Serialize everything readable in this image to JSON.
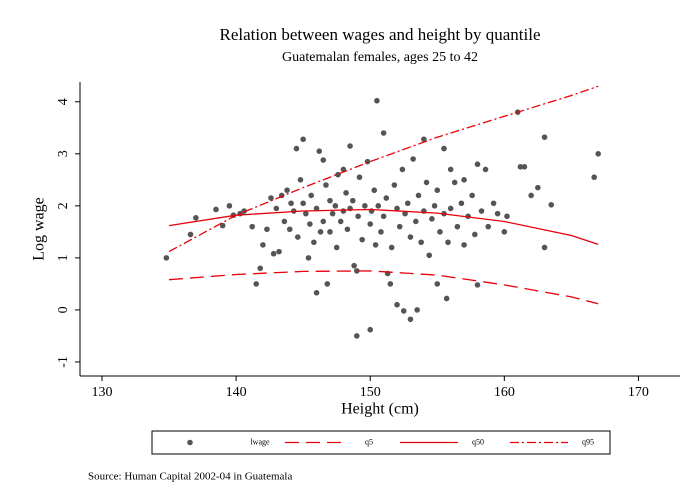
{
  "chart_data": {
    "type": "scatter",
    "title": "Relation between wages and height by quantile",
    "subtitle": "Guatemalan females, ages 25 to 42",
    "x_label": "Height (cm)",
    "y_label": "Log wage",
    "note": "Source: Human Capital 2002-04 in Guatemala",
    "xlim": [
      128.36,
      173.1
    ],
    "ylim": [
      -1.27,
      4.38
    ],
    "xticks": [
      130,
      140,
      150,
      160,
      170
    ],
    "yticks": [
      -1,
      0,
      1,
      2,
      3,
      4
    ],
    "grid": false,
    "legend": "bottom",
    "series": [
      {
        "name": "lwage",
        "type": "scatter",
        "color": "#555555",
        "x": [
          134.8,
          136.6,
          137,
          138.5,
          139,
          139.5,
          139.8,
          140.3,
          140.6,
          141.2,
          141.5,
          141.8,
          142,
          142.3,
          142.6,
          142.8,
          143,
          143.2,
          143.4,
          143.6,
          143.8,
          144,
          144.1,
          144.3,
          144.5,
          144.6,
          144.8,
          145,
          145,
          145.2,
          145.4,
          145.5,
          145.6,
          145.8,
          146,
          146,
          146.2,
          146.3,
          146.5,
          146.5,
          146.7,
          146.8,
          147,
          147,
          147.2,
          147.4,
          147.5,
          147.6,
          147.8,
          148,
          148,
          148.2,
          148.3,
          148.5,
          148.5,
          148.7,
          148.8,
          149,
          149,
          149.1,
          149.2,
          149.4,
          149.6,
          149.8,
          150,
          150,
          150.1,
          150.3,
          150.4,
          150.5,
          150.6,
          150.8,
          151,
          151,
          151.2,
          151.3,
          151.5,
          151.6,
          151.8,
          152,
          152,
          152.2,
          152.4,
          152.5,
          152.6,
          152.8,
          153,
          153,
          153.2,
          153.4,
          153.5,
          153.6,
          153.8,
          154,
          154,
          154.2,
          154.4,
          154.6,
          154.8,
          155,
          155,
          155.2,
          155.5,
          155.5,
          155.7,
          155.8,
          156,
          156,
          156.3,
          156.5,
          156.8,
          157,
          157,
          157.3,
          157.6,
          157.8,
          158,
          158,
          158.3,
          158.6,
          158.8,
          159.2,
          159.5,
          160,
          160.2,
          161,
          161.2,
          161.5,
          162,
          162.5,
          163,
          163,
          163.5,
          166.7,
          167
        ],
        "values": [
          1.0,
          1.45,
          1.77,
          1.93,
          1.62,
          2.0,
          1.82,
          1.85,
          1.9,
          1.6,
          0.5,
          0.8,
          1.25,
          1.55,
          2.15,
          1.08,
          1.95,
          1.12,
          2.2,
          1.7,
          2.3,
          1.55,
          2.05,
          1.9,
          3.1,
          1.4,
          2.5,
          3.28,
          2.05,
          1.85,
          1.0,
          1.65,
          2.2,
          1.3,
          0.33,
          1.95,
          3.05,
          1.5,
          2.88,
          1.7,
          2.4,
          0.5,
          1.5,
          2.1,
          1.85,
          2.0,
          1.2,
          2.6,
          1.7,
          2.7,
          1.9,
          2.25,
          1.55,
          3.15,
          1.95,
          2.1,
          0.85,
          0.75,
          -0.5,
          1.8,
          2.55,
          1.35,
          2.0,
          2.85,
          -0.38,
          1.65,
          1.9,
          2.3,
          1.25,
          4.02,
          2.0,
          1.5,
          3.4,
          1.8,
          2.15,
          0.7,
          0.5,
          1.2,
          2.4,
          0.1,
          1.95,
          1.6,
          2.7,
          -0.02,
          1.85,
          2.05,
          -0.18,
          1.4,
          2.9,
          1.7,
          0.0,
          2.2,
          1.3,
          3.28,
          1.9,
          2.45,
          1.05,
          1.75,
          2.0,
          0.5,
          2.3,
          1.5,
          3.1,
          1.85,
          0.22,
          1.3,
          2.7,
          1.95,
          2.45,
          1.6,
          2.05,
          1.25,
          2.5,
          1.8,
          2.2,
          1.45,
          0.48,
          2.8,
          1.9,
          2.7,
          1.6,
          2.05,
          1.85,
          1.5,
          1.8,
          3.8,
          2.75,
          2.75,
          2.2,
          2.35,
          3.32,
          1.2,
          2.02,
          2.55,
          3.0
        ]
      },
      {
        "name": "q5",
        "type": "line",
        "line_style": "longdash",
        "color": "#e8000b",
        "x": [
          135,
          140,
          145,
          150,
          155,
          160,
          165,
          167
        ],
        "values": [
          0.58,
          0.68,
          0.74,
          0.75,
          0.67,
          0.48,
          0.25,
          0.12
        ]
      },
      {
        "name": "q50",
        "type": "line",
        "line_style": "solid",
        "color": "#e8000b",
        "x": [
          135,
          140,
          145,
          150,
          155,
          160,
          165,
          167
        ],
        "values": [
          1.62,
          1.82,
          1.9,
          1.93,
          1.86,
          1.7,
          1.43,
          1.26
        ]
      },
      {
        "name": "q95",
        "type": "line",
        "line_style": "dashdot",
        "color": "#e8000b",
        "x": [
          135,
          140,
          145,
          150,
          155,
          160,
          165,
          167
        ],
        "values": [
          1.12,
          1.82,
          2.35,
          2.85,
          3.32,
          3.72,
          4.12,
          4.3
        ]
      }
    ]
  }
}
